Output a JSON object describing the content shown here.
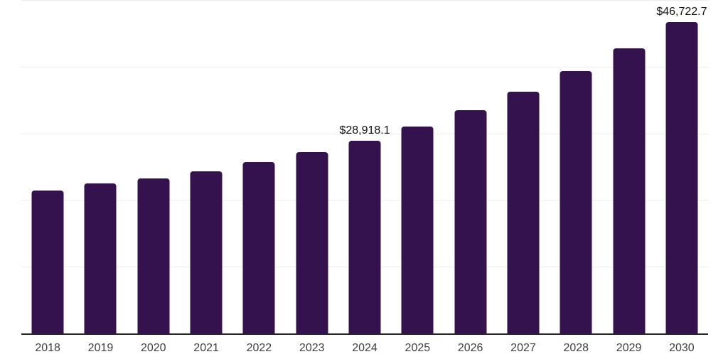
{
  "chart_data": {
    "type": "bar",
    "title": "",
    "xlabel": "",
    "ylabel": "",
    "categories": [
      "2018",
      "2019",
      "2020",
      "2021",
      "2022",
      "2023",
      "2024",
      "2025",
      "2026",
      "2027",
      "2028",
      "2029",
      "2030"
    ],
    "values": [
      21470,
      22540,
      23280,
      24350,
      25730,
      27215,
      28918.1,
      31045,
      33455,
      36250,
      39335,
      42705,
      46722.7
    ],
    "labeled_points": {
      "2024": "$28,918.1",
      "2030": "$46,722.7"
    },
    "ylim": [
      0,
      50000
    ],
    "gridline_step": 10000,
    "grid": "horizontal",
    "legend": "none",
    "bar_color": "#33124d",
    "gridline_color": "#ededed",
    "axis_line_color": "#262626",
    "data_label_color": "#111111",
    "tick_label_color": "#3f3f3f",
    "background": "#ffffff"
  }
}
